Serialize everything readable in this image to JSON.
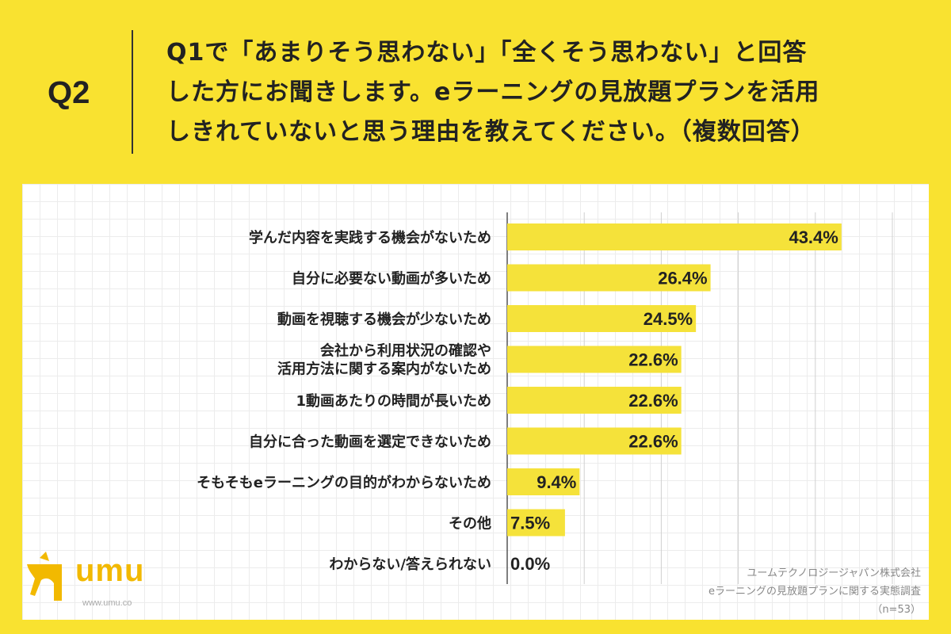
{
  "header": {
    "label": "Q2",
    "lines": [
      "Q1で「あまりそう思わない」「全くそう思わない」と回答",
      "した方にお聞きします。eラーニングの見放題プランを活用",
      "しきれていないと思う理由を教えてください。（複数回答）"
    ]
  },
  "source": {
    "company": "ユームテクノロジージャパン株式会社",
    "survey": "eラーニングの見放題プランに関する実態調査",
    "n": "（n=53）"
  },
  "logo": {
    "name": "umu",
    "url": "www.umu.co"
  },
  "colors": {
    "background": "#f9e230",
    "bar": "#f5e23a",
    "text": "#222222"
  },
  "chart_data": {
    "type": "bar",
    "orientation": "horizontal",
    "unit": "%",
    "categories": [
      [
        "学んだ内容を実践する機会がないため"
      ],
      [
        "自分に必要ない動画が多いため"
      ],
      [
        "動画を視聴する機会が少ないため"
      ],
      [
        "会社から利用状況の確認や",
        "活用方法に関する案内がないため"
      ],
      [
        "1動画あたりの時間が長いため"
      ],
      [
        "自分に合った動画を選定できないため"
      ],
      [
        "そもそもeラーニングの目的がわからないため"
      ],
      [
        "その他"
      ],
      [
        "わからない/答えられない"
      ]
    ],
    "values": [
      43.4,
      26.4,
      24.5,
      22.6,
      22.6,
      22.6,
      9.4,
      7.5,
      0.0
    ],
    "value_labels": [
      "43.4%",
      "26.4%",
      "24.5%",
      "22.6%",
      "22.6%",
      "22.6%",
      "9.4%",
      "7.5%",
      "0.0%"
    ],
    "xlim": [
      0,
      50
    ],
    "grid_step": 10,
    "grid": true
  }
}
